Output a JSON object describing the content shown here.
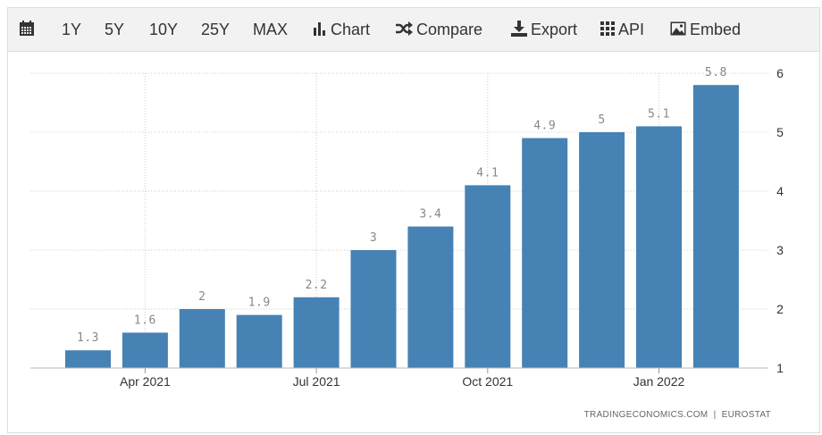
{
  "toolbar": {
    "calendar_icon": "calendar-icon",
    "ranges": [
      "1Y",
      "5Y",
      "10Y",
      "25Y",
      "MAX"
    ],
    "chart_label": "Chart",
    "compare_label": "Compare",
    "export_label": "Export",
    "api_label": "API",
    "embed_label": "Embed"
  },
  "footer": {
    "source": "TRADINGECONOMICS.COM  |  EUROSTAT"
  },
  "colors": {
    "bar": "#4682b4",
    "grid": "#cccccc",
    "label": "#888888",
    "axis_text": "#333333"
  },
  "chart_data": {
    "type": "bar",
    "x_tick_labels": [
      "Apr 2021",
      "Jul 2021",
      "Oct 2021",
      "Jan 2022"
    ],
    "x_tick_positions": [
      1,
      4,
      7,
      10
    ],
    "values": [
      1.3,
      1.6,
      2,
      1.9,
      2.2,
      3,
      3.4,
      4.1,
      4.9,
      5,
      5.1,
      5.8
    ],
    "value_labels": [
      "1.3",
      "1.6",
      "2",
      "1.9",
      "2.2",
      "3",
      "3.4",
      "4.1",
      "4.9",
      "5",
      "5.1",
      "5.8"
    ],
    "ylim": [
      1,
      6
    ],
    "y_ticks": [
      1,
      2,
      3,
      4,
      5,
      6
    ],
    "y_axis_side": "right",
    "grid": true,
    "title": "",
    "xlabel": "",
    "ylabel": ""
  }
}
